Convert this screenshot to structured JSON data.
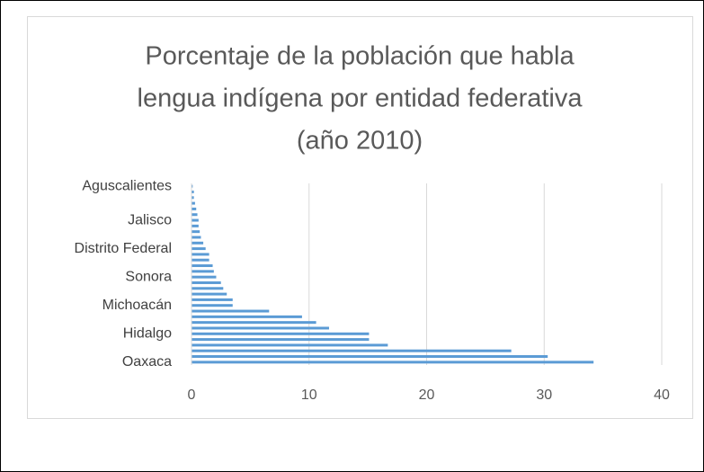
{
  "chart_data": {
    "type": "bar",
    "orientation": "horizontal",
    "title": [
      "Porcentaje de la población que habla",
      "lengua indígena por entidad federativa",
      "(año 2010)"
    ],
    "categories": [
      "Oaxaca",
      null,
      null,
      null,
      null,
      "Hidalgo",
      null,
      null,
      null,
      null,
      "Michoacán",
      null,
      null,
      null,
      null,
      "Sonora",
      null,
      null,
      null,
      null,
      "Distrito Federal",
      null,
      null,
      null,
      null,
      "Jalisco",
      null,
      null,
      null,
      null,
      null,
      "Aguscalientes"
    ],
    "values": [
      34.2,
      30.3,
      27.2,
      16.7,
      15.1,
      15.1,
      11.7,
      10.6,
      9.4,
      6.6,
      3.5,
      3.5,
      3.0,
      2.7,
      2.5,
      2.1,
      1.9,
      1.8,
      1.5,
      1.5,
      1.2,
      1.0,
      0.8,
      0.7,
      0.6,
      0.6,
      0.5,
      0.4,
      0.3,
      0.2,
      0.2,
      0.1
    ],
    "color": "#5b9bd5",
    "xlim": [
      0,
      40
    ],
    "xticks": [
      0,
      10,
      20,
      30,
      40
    ],
    "grid": true
  }
}
